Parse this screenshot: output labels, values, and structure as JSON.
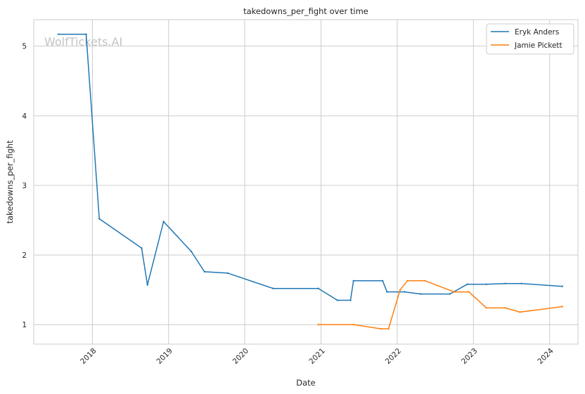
{
  "watermark": "WolfTickets.AI",
  "chart_data": {
    "type": "line",
    "title": "takedowns_per_fight over time",
    "xlabel": "Date",
    "ylabel": "takedowns_per_fight",
    "x_ticks": [
      "2018",
      "2019",
      "2020",
      "2021",
      "2022",
      "2023",
      "2024"
    ],
    "y_ticks": [
      "1",
      "2",
      "3",
      "4",
      "5"
    ],
    "xlim": [
      "2017-03-26",
      "2024-05-16"
    ],
    "ylim": [
      0.72,
      5.38
    ],
    "grid": true,
    "legend": "top-right",
    "series": [
      {
        "name": "Eryk Anders",
        "color": "#1f77b4",
        "x": [
          "2017-07-22",
          "2017-12-02",
          "2018-02-03",
          "2018-08-25",
          "2018-09-22",
          "2018-12-08",
          "2019-04-20",
          "2019-06-22",
          "2019-10-12",
          "2020-05-16",
          "2020-12-19",
          "2021-03-20",
          "2021-05-22",
          "2021-06-05",
          "2021-10-23",
          "2021-11-13",
          "2022-02-05",
          "2022-04-23",
          "2022-09-10",
          "2022-12-03",
          "2023-03-04",
          "2023-06-03",
          "2023-08-19",
          "2024-03-02"
        ],
        "values": [
          5.17,
          5.17,
          2.52,
          2.1,
          1.57,
          2.48,
          2.05,
          1.76,
          1.74,
          1.52,
          1.52,
          1.35,
          1.35,
          1.63,
          1.63,
          1.47,
          1.47,
          1.44,
          1.44,
          1.58,
          1.58,
          1.59,
          1.59,
          1.55
        ]
      },
      {
        "name": "Jamie Pickett",
        "color": "#ff7f0e",
        "x": [
          "2020-12-19",
          "2021-06-05",
          "2021-10-16",
          "2021-11-20",
          "2022-01-15",
          "2022-02-19",
          "2022-05-14",
          "2022-10-01",
          "2022-12-10",
          "2023-03-04",
          "2023-06-03",
          "2023-08-12",
          "2024-03-02"
        ],
        "values": [
          1.0,
          1.0,
          0.94,
          0.94,
          1.5,
          1.63,
          1.63,
          1.47,
          1.47,
          1.24,
          1.24,
          1.18,
          1.26
        ]
      }
    ]
  }
}
